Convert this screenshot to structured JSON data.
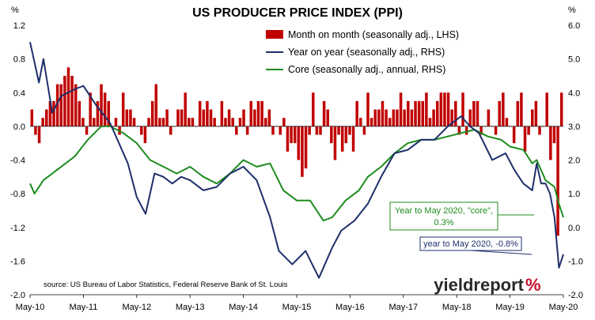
{
  "chart_data": {
    "type": "bar+line",
    "title": "US PRODUCER PRICE INDEX (PPI)",
    "lhs_unit": "%",
    "rhs_unit": "%",
    "lhs_range": [
      -2.0,
      1.2
    ],
    "rhs_range": [
      -2.0,
      6.0
    ],
    "lhs_ticks": [
      "1.2",
      "0.8",
      "0.4",
      "0.0",
      "-0.4",
      "-0.8",
      "-1.2",
      "-1.6",
      "-2.0"
    ],
    "rhs_ticks": [
      "6.0",
      "5.0",
      "4.0",
      "3.0",
      "2.0",
      "1.0",
      "0.0",
      "-1.0",
      "-2.0"
    ],
    "x_ticks": [
      "May-10",
      "May-11",
      "May-12",
      "May-13",
      "May-14",
      "May-15",
      "May-16",
      "May-17",
      "May-18",
      "May-19",
      "May-20"
    ],
    "source": "source: US Bureau of Labor Statistics, Federal Reserve Bank of St. Louis",
    "logo": {
      "text_main": "yieldreport",
      "text_pct": "%",
      "main_color": "#2a2a2a",
      "pct_color": "#c8102e"
    },
    "grid": false,
    "legend_position": "top-right",
    "series": [
      {
        "name": "Month on month (seasonally adj., LHS)",
        "kind": "bar",
        "axis": "left",
        "color": "#c00000",
        "values": [
          0.2,
          -0.1,
          -0.2,
          0.1,
          0.2,
          0.3,
          0.3,
          0.5,
          0.5,
          0.6,
          0.7,
          0.6,
          0.5,
          0.3,
          0.1,
          -0.1,
          0.4,
          0.1,
          0.3,
          0.5,
          0.4,
          0.3,
          0.0,
          0.1,
          -0.1,
          0.4,
          0.2,
          0.2,
          0.1,
          0.0,
          -0.1,
          -0.2,
          0.1,
          0.3,
          0.5,
          0.1,
          0.1,
          0.2,
          -0.1,
          0.0,
          0.2,
          0.2,
          0.4,
          0.1,
          0.1,
          0.0,
          0.3,
          0.2,
          0.3,
          0.2,
          0.1,
          0.0,
          0.3,
          0.1,
          0.2,
          0.1,
          -0.1,
          0.1,
          0.2,
          -0.1,
          0.3,
          0.2,
          0.3,
          0.3,
          0.1,
          0.2,
          -0.1,
          0.0,
          -0.1,
          0.1,
          -0.3,
          -0.2,
          -0.2,
          -0.4,
          -0.6,
          -0.5,
          -0.1,
          0.4,
          -0.1,
          -0.1,
          0.3,
          0.2,
          -0.2,
          -0.4,
          -0.1,
          -0.3,
          -0.2,
          -0.1,
          -0.3,
          0.3,
          0.1,
          -0.1,
          0.4,
          0.1,
          0.2,
          0.2,
          0.3,
          0.2,
          0.1,
          0.2,
          0.2,
          0.4,
          0.2,
          0.3,
          0.2,
          0.3,
          0.3,
          0.3,
          0.4,
          0.1,
          0.2,
          0.3,
          0.4,
          0.4,
          0.4,
          0.2,
          0.3,
          -0.1,
          0.4,
          -0.1,
          0.2,
          0.3,
          0.3,
          -0.1,
          0.0,
          0.2,
          0.0,
          -0.1,
          0.3,
          0.4,
          0.1,
          0.0,
          -0.2,
          0.3,
          0.4,
          -0.3,
          -0.1,
          0.2,
          0.3,
          -0.1,
          0.0,
          0.4,
          -0.4,
          -0.2,
          -1.3,
          0.4
        ]
      },
      {
        "name": "Year on year (seasonally adj., RHS)",
        "kind": "line",
        "axis": "right",
        "color": "#1f2f6b",
        "points": [
          [
            "May-10",
            5.5
          ],
          [
            "Jul-10",
            4.3
          ],
          [
            "Aug-10",
            5.0
          ],
          [
            "Oct-10",
            3.4
          ],
          [
            "Dec-10",
            3.9
          ],
          [
            "Mar-11",
            4.1
          ],
          [
            "May-11",
            4.2
          ],
          [
            "Aug-11",
            3.6
          ],
          [
            "Nov-11",
            3.1
          ],
          [
            "Mar-12",
            1.9
          ],
          [
            "May-12",
            0.9
          ],
          [
            "Jul-12",
            0.4
          ],
          [
            "Sep-12",
            1.6
          ],
          [
            "Nov-12",
            1.5
          ],
          [
            "Jan-13",
            1.3
          ],
          [
            "Mar-13",
            1.5
          ],
          [
            "May-13",
            1.4
          ],
          [
            "Aug-13",
            1.1
          ],
          [
            "Nov-13",
            1.2
          ],
          [
            "Feb-14",
            1.6
          ],
          [
            "May-14",
            1.8
          ],
          [
            "Aug-14",
            1.4
          ],
          [
            "Nov-14",
            0.3
          ],
          [
            "Jan-15",
            -0.7
          ],
          [
            "Apr-15",
            -1.1
          ],
          [
            "Jul-15",
            -0.7
          ],
          [
            "Oct-15",
            -1.5
          ],
          [
            "Jan-16",
            -0.6
          ],
          [
            "Mar-16",
            -0.1
          ],
          [
            "Jun-16",
            0.2
          ],
          [
            "Sep-16",
            0.7
          ],
          [
            "Dec-16",
            1.5
          ],
          [
            "Mar-17",
            2.2
          ],
          [
            "Jun-17",
            2.3
          ],
          [
            "Sep-17",
            2.6
          ],
          [
            "Dec-17",
            2.6
          ],
          [
            "Mar-18",
            3.0
          ],
          [
            "Jun-18",
            3.3
          ],
          [
            "Aug-18",
            3.0
          ],
          [
            "Oct-18",
            2.8
          ],
          [
            "Jan-19",
            2.0
          ],
          [
            "Apr-19",
            2.2
          ],
          [
            "Jun-19",
            1.7
          ],
          [
            "Aug-19",
            1.3
          ],
          [
            "Oct-19",
            1.1
          ],
          [
            "Nov-19",
            1.9
          ],
          [
            "Dec-19",
            1.3
          ],
          [
            "Jan-20",
            1.3
          ],
          [
            "Feb-20",
            1.0
          ],
          [
            "Mar-20",
            0.3
          ],
          [
            "Apr-20",
            -1.2
          ],
          [
            "May-20",
            -0.8
          ]
        ]
      },
      {
        "name": "Core (seasonally adj., annual, RHS)",
        "kind": "line",
        "axis": "right",
        "color": "#1e8c1e",
        "points": [
          [
            "May-10",
            1.3
          ],
          [
            "Jun-10",
            1.0
          ],
          [
            "Aug-10",
            1.4
          ],
          [
            "Nov-10",
            1.7
          ],
          [
            "Mar-11",
            2.1
          ],
          [
            "Jun-11",
            2.6
          ],
          [
            "Sep-11",
            3.0
          ],
          [
            "Nov-11",
            3.0
          ],
          [
            "Feb-12",
            2.8
          ],
          [
            "May-12",
            2.5
          ],
          [
            "Aug-12",
            2.0
          ],
          [
            "Nov-12",
            1.8
          ],
          [
            "Feb-13",
            1.6
          ],
          [
            "May-13",
            1.8
          ],
          [
            "Aug-13",
            1.5
          ],
          [
            "Nov-13",
            1.3
          ],
          [
            "Feb-14",
            1.6
          ],
          [
            "May-14",
            2.0
          ],
          [
            "Aug-14",
            1.8
          ],
          [
            "Nov-14",
            1.9
          ],
          [
            "Feb-15",
            1.1
          ],
          [
            "May-15",
            0.8
          ],
          [
            "Aug-15",
            0.8
          ],
          [
            "Nov-15",
            0.2
          ],
          [
            "Jan-16",
            0.3
          ],
          [
            "Apr-16",
            0.8
          ],
          [
            "Jul-16",
            1.1
          ],
          [
            "Sep-16",
            1.5
          ],
          [
            "Dec-16",
            1.8
          ],
          [
            "Mar-17",
            2.2
          ],
          [
            "Jun-17",
            2.5
          ],
          [
            "Sep-17",
            2.6
          ],
          [
            "Dec-17",
            2.6
          ],
          [
            "Mar-18",
            2.7
          ],
          [
            "Jun-18",
            2.8
          ],
          [
            "Sep-18",
            2.9
          ],
          [
            "Dec-18",
            2.7
          ],
          [
            "Mar-19",
            2.6
          ],
          [
            "May-19",
            2.4
          ],
          [
            "Aug-19",
            2.3
          ],
          [
            "Oct-19",
            1.9
          ],
          [
            "Nov-19",
            2.0
          ],
          [
            "Jan-20",
            1.4
          ],
          [
            "Mar-20",
            1.2
          ],
          [
            "Apr-20",
            0.7
          ],
          [
            "May-20",
            0.3
          ]
        ]
      }
    ],
    "annotations": [
      {
        "text_line1": "Year to May 2020, \"core\",",
        "text_line2": "0.3%",
        "color": "#1e8c1e",
        "series": "core"
      },
      {
        "text": "year to May 2020, -0.8%",
        "color": "#1f2f6b",
        "series": "yoy"
      }
    ]
  }
}
